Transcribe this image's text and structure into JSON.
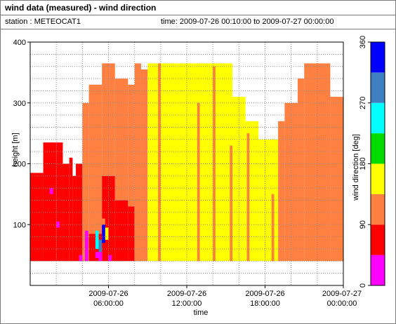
{
  "header": {
    "title": "wind data (measured) - wind direction",
    "station_label": "station : METEOCAT1",
    "time_label": "time: 2009-07-26 00:10:00 to 2009-07-27 00:00:00"
  },
  "chart_data": {
    "type": "heatmap",
    "title": "wind data (measured) - wind direction",
    "xlabel": "time",
    "ylabel": "height [m]",
    "colorbar_label": "wind direction [deg]",
    "x_unit": "hours since 2009-07-26 00:00:00",
    "xlim": [
      0,
      24
    ],
    "ylim": [
      0,
      400
    ],
    "y_ticks": [
      100,
      200,
      300,
      400
    ],
    "x_ticks": [
      {
        "x": 6,
        "line1": "2009-07-26",
        "line2": "06:00:00"
      },
      {
        "x": 12,
        "line1": "2009-07-26",
        "line2": "12:00:00"
      },
      {
        "x": 18,
        "line1": "2009-07-26",
        "line2": "18:00:00"
      },
      {
        "x": 24,
        "line1": "2009-07-27",
        "line2": "00:00:00"
      }
    ],
    "colorbar": {
      "range": [
        0,
        360
      ],
      "ticks": [
        0,
        90,
        180,
        270,
        360
      ],
      "bins": [
        {
          "from": 0,
          "to": 45,
          "color": "#ff00ff"
        },
        {
          "from": 45,
          "to": 90,
          "color": "#ff0000"
        },
        {
          "from": 90,
          "to": 135,
          "color": "#ff8040"
        },
        {
          "from": 135,
          "to": 180,
          "color": "#ffff00"
        },
        {
          "from": 180,
          "to": 225,
          "color": "#00dd00"
        },
        {
          "from": 225,
          "to": 270,
          "color": "#00ffff"
        },
        {
          "from": 270,
          "to": 315,
          "color": "#4080c0"
        },
        {
          "from": 315,
          "to": 360,
          "color": "#0000ff"
        }
      ]
    },
    "min_height": 40,
    "column_width_hours": 0.25,
    "columns": [
      {
        "t0": 0.0,
        "t1": 1.0,
        "top": 185,
        "bands": [
          {
            "to": 400,
            "dir": 70
          }
        ]
      },
      {
        "t0": 1.0,
        "t1": 2.0,
        "top": 235,
        "bands": [
          {
            "to": 400,
            "dir": 70
          }
        ]
      },
      {
        "t0": 2.0,
        "t1": 2.5,
        "top": 235,
        "bands": [
          {
            "to": 400,
            "dir": 70
          }
        ]
      },
      {
        "t0": 2.5,
        "t1": 3.0,
        "top": 200,
        "bands": [
          {
            "to": 400,
            "dir": 70
          }
        ]
      },
      {
        "t0": 3.0,
        "t1": 3.25,
        "top": 210,
        "bands": [
          {
            "to": 400,
            "dir": 70
          }
        ]
      },
      {
        "t0": 3.25,
        "t1": 3.5,
        "top": 180,
        "bands": [
          {
            "to": 400,
            "dir": 70
          }
        ]
      },
      {
        "t0": 3.5,
        "t1": 4.0,
        "top": 200,
        "bands": [
          {
            "to": 400,
            "dir": 70
          }
        ]
      },
      {
        "t0": 4.0,
        "t1": 4.5,
        "top": 300,
        "bands": [
          {
            "to": 400,
            "dir": 120
          }
        ]
      },
      {
        "t0": 4.5,
        "t1": 5.5,
        "top": 330,
        "bands": [
          {
            "to": 85,
            "dir": 70
          },
          {
            "to": 400,
            "dir": 120
          }
        ]
      },
      {
        "t0": 5.5,
        "t1": 6.5,
        "top": 365,
        "bands": [
          {
            "to": 180,
            "dir": 70
          },
          {
            "to": 400,
            "dir": 120
          }
        ]
      },
      {
        "t0": 6.5,
        "t1": 7.5,
        "top": 340,
        "bands": [
          {
            "to": 140,
            "dir": 70
          },
          {
            "to": 400,
            "dir": 120
          }
        ]
      },
      {
        "t0": 7.5,
        "t1": 8.0,
        "top": 330,
        "bands": [
          {
            "to": 130,
            "dir": 70
          },
          {
            "to": 400,
            "dir": 120
          }
        ]
      },
      {
        "t0": 8.0,
        "t1": 8.5,
        "top": 365,
        "bands": [
          {
            "to": 40,
            "dir": 70
          },
          {
            "to": 400,
            "dir": 120
          }
        ]
      },
      {
        "t0": 8.5,
        "t1": 9.0,
        "top": 355,
        "bands": [
          {
            "to": 400,
            "dir": 120
          }
        ]
      },
      {
        "t0": 9.0,
        "t1": 12.0,
        "top": 365,
        "bands": [
          {
            "to": 400,
            "dir": 160
          }
        ]
      },
      {
        "t0": 12.0,
        "t1": 15.5,
        "top": 365,
        "bands": [
          {
            "to": 400,
            "dir": 160
          }
        ]
      },
      {
        "t0": 15.5,
        "t1": 16.5,
        "top": 310,
        "bands": [
          {
            "to": 400,
            "dir": 160
          }
        ]
      },
      {
        "t0": 16.5,
        "t1": 17.5,
        "top": 270,
        "bands": [
          {
            "to": 400,
            "dir": 160
          }
        ]
      },
      {
        "t0": 17.5,
        "t1": 19.0,
        "top": 240,
        "bands": [
          {
            "to": 400,
            "dir": 160
          }
        ]
      },
      {
        "t0": 19.0,
        "t1": 19.5,
        "top": 270,
        "bands": [
          {
            "to": 400,
            "dir": 120
          }
        ]
      },
      {
        "t0": 19.5,
        "t1": 20.5,
        "top": 300,
        "bands": [
          {
            "to": 400,
            "dir": 120
          }
        ]
      },
      {
        "t0": 20.5,
        "t1": 21.0,
        "top": 340,
        "bands": [
          {
            "to": 400,
            "dir": 120
          }
        ]
      },
      {
        "t0": 21.0,
        "t1": 23.0,
        "top": 365,
        "bands": [
          {
            "to": 400,
            "dir": 120
          }
        ]
      },
      {
        "t0": 23.0,
        "t1": 24.0,
        "top": 310,
        "bands": [
          {
            "to": 400,
            "dir": 120
          }
        ]
      }
    ],
    "patches": [
      {
        "t0": 4.2,
        "t1": 4.45,
        "h0": 40,
        "h1": 90,
        "dir": 20
      },
      {
        "t0": 3.75,
        "t1": 4.0,
        "h0": 40,
        "h1": 50,
        "dir": 20
      },
      {
        "t0": 2.0,
        "t1": 2.25,
        "h0": 95,
        "h1": 105,
        "dir": 20
      },
      {
        "t0": 1.5,
        "t1": 1.75,
        "h0": 150,
        "h1": 160,
        "dir": 20
      },
      {
        "t0": 5.0,
        "t1": 5.5,
        "h0": 45,
        "h1": 55,
        "dir": 20
      },
      {
        "t0": 5.0,
        "t1": 5.25,
        "h0": 60,
        "h1": 110,
        "dir": 250
      },
      {
        "t0": 5.25,
        "t1": 5.5,
        "h0": 55,
        "h1": 75,
        "dir": 300
      },
      {
        "t0": 5.5,
        "t1": 5.75,
        "h0": 70,
        "h1": 100,
        "dir": 330
      },
      {
        "t0": 5.75,
        "t1": 6.0,
        "h0": 75,
        "h1": 95,
        "dir": 160
      },
      {
        "t0": 5.25,
        "t1": 5.5,
        "h0": 40,
        "h1": 55,
        "dir": 20
      },
      {
        "t0": 5.0,
        "t1": 5.25,
        "h0": 90,
        "h1": 110,
        "dir": 120
      },
      {
        "t0": 5.5,
        "t1": 5.75,
        "h0": 100,
        "h1": 110,
        "dir": 120
      },
      {
        "t0": 6.0,
        "t1": 6.25,
        "h0": 40,
        "h1": 50,
        "dir": 20
      },
      {
        "t0": 9.8,
        "t1": 10.0,
        "h0": 40,
        "h1": 365,
        "dir": 120
      },
      {
        "t0": 12.8,
        "t1": 13.0,
        "h0": 40,
        "h1": 300,
        "dir": 120
      },
      {
        "t0": 14.0,
        "t1": 14.2,
        "h0": 40,
        "h1": 360,
        "dir": 120
      },
      {
        "t0": 15.3,
        "t1": 15.5,
        "h0": 40,
        "h1": 230,
        "dir": 120
      },
      {
        "t0": 16.6,
        "t1": 16.8,
        "h0": 40,
        "h1": 250,
        "dir": 120
      },
      {
        "t0": 18.5,
        "t1": 18.7,
        "h0": 40,
        "h1": 150,
        "dir": 120
      }
    ]
  }
}
